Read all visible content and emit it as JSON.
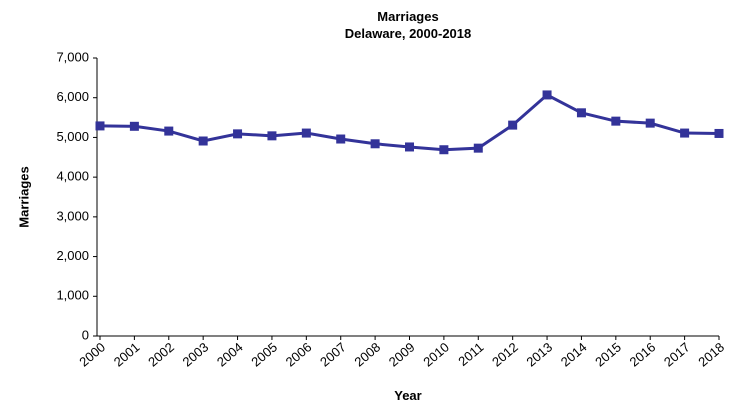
{
  "chart_data": {
    "type": "line",
    "title": "Marriages",
    "subtitle": "Delaware, 2000-2018",
    "x_label": "Year",
    "y_label": "Marriages",
    "categories": [
      "2000",
      "2001",
      "2002",
      "2003",
      "2004",
      "2005",
      "2006",
      "2007",
      "2008",
      "2009",
      "2010",
      "2011",
      "2012",
      "2013",
      "2014",
      "2015",
      "2016",
      "2017",
      "2018"
    ],
    "series": [
      {
        "name": "Marriages",
        "color": "#333399",
        "values": [
          5290,
          5280,
          5160,
          4910,
          5090,
          5040,
          5110,
          4960,
          4840,
          4760,
          4690,
          4730,
          5310,
          6070,
          5620,
          5410,
          5360,
          5110,
          5100
        ]
      }
    ],
    "ylim": [
      0,
      7000
    ],
    "yticks": [
      0,
      {
        "value": 1000,
        "label": "1,000"
      },
      {
        "value": 2000,
        "label": "2,000"
      },
      {
        "value": 3000,
        "label": "3,000"
      },
      {
        "value": 4000,
        "label": "4,000"
      },
      {
        "value": 5000,
        "label": "5,000"
      },
      {
        "value": 6000,
        "label": "6,000"
      },
      {
        "value": 7000,
        "label": "7,000"
      }
    ],
    "grid": false
  }
}
